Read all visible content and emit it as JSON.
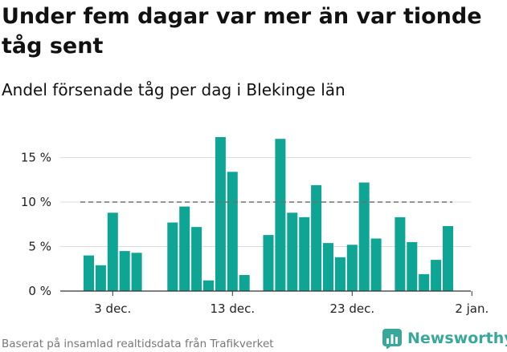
{
  "header": {
    "title": "Under fem dagar var mer än var tionde tåg sent",
    "subtitle": "Andel försenade tåg per dag i Blekinge län"
  },
  "footer": {
    "source": "Baserat på insamlad realtidsdata från Trafikverket",
    "brand": "Newsworthy"
  },
  "colors": {
    "bar": "#0ea594",
    "reference_line": "#707070",
    "grid": "#dddddd",
    "axis": "#333333",
    "brand": "#39a89b"
  },
  "chart_data": {
    "type": "bar",
    "unit": "%",
    "x": [
      "2020-12-01",
      "2020-12-02",
      "2020-12-03",
      "2020-12-04",
      "2020-12-05",
      "2020-12-06",
      "2020-12-07",
      "2020-12-08",
      "2020-12-09",
      "2020-12-10",
      "2020-12-11",
      "2020-12-12",
      "2020-12-13",
      "2020-12-14",
      "2020-12-15",
      "2020-12-16",
      "2020-12-17",
      "2020-12-18",
      "2020-12-19",
      "2020-12-20",
      "2020-12-21",
      "2020-12-22",
      "2020-12-23",
      "2020-12-24",
      "2020-12-25",
      "2020-12-26",
      "2020-12-27",
      "2020-12-28",
      "2020-12-29",
      "2020-12-30",
      "2020-12-31",
      "2021-01-01"
    ],
    "values": [
      4.0,
      2.9,
      8.8,
      4.5,
      4.3,
      null,
      null,
      7.7,
      9.5,
      7.2,
      1.2,
      17.3,
      13.4,
      1.8,
      null,
      6.3,
      17.1,
      8.8,
      8.3,
      11.9,
      5.4,
      3.8,
      5.2,
      12.2,
      5.9,
      null,
      8.3,
      5.5,
      1.9,
      3.5,
      7.3,
      null
    ],
    "reference_line": 10,
    "ylim": [
      0,
      20
    ],
    "yticks": [
      0,
      5,
      10,
      15
    ],
    "ytick_labels": [
      "0 %",
      "5 %",
      "10 %",
      "15 %"
    ],
    "xticks": [
      "2020-12-03",
      "2020-12-13",
      "2020-12-23",
      "2021-01-02"
    ],
    "xtick_labels": [
      "3 dec.",
      "13 dec.",
      "23 dec.",
      "2 jan."
    ],
    "grid": "horizontal",
    "legend": "none"
  }
}
